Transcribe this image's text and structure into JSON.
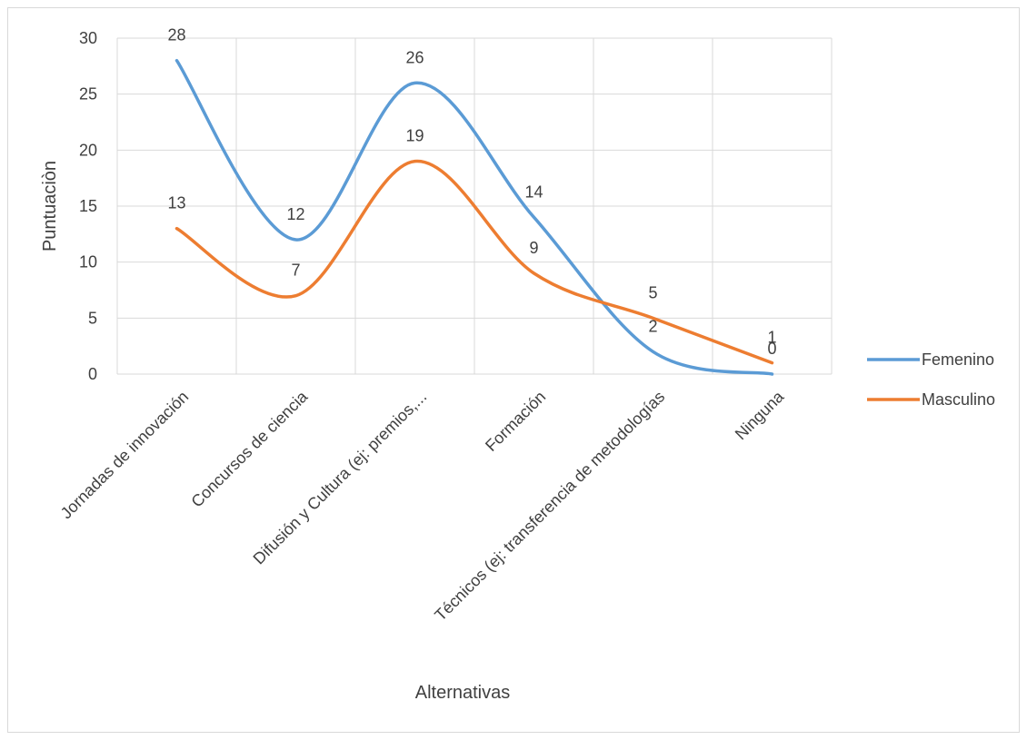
{
  "chart_data": {
    "type": "line",
    "title": "",
    "xlabel": "Alternativas",
    "ylabel": "Puntuaciòn",
    "ylim": [
      0,
      30
    ],
    "yticks": [
      0,
      5,
      10,
      15,
      20,
      25,
      30
    ],
    "grid": true,
    "smooth": true,
    "legend_position": "right",
    "categories": [
      "Jornadas de innovación",
      "Concursos de ciencia",
      "Difusión y Cultura (ej: premios,...",
      "Formación",
      "Técnicos (ej: transferencia de metodologías",
      "Ninguna"
    ],
    "series": [
      {
        "name": "Femenino",
        "color": "#5b9bd5",
        "values": [
          28,
          12,
          26,
          14,
          2,
          0
        ],
        "data_labels": [
          "28",
          "12",
          "26",
          "14",
          "2",
          "0"
        ]
      },
      {
        "name": "Masculino",
        "color": "#ed7d31",
        "values": [
          13,
          7,
          19,
          9,
          5,
          1
        ],
        "data_labels": [
          "13",
          "7",
          "19",
          "9",
          "5",
          "1"
        ]
      }
    ]
  }
}
